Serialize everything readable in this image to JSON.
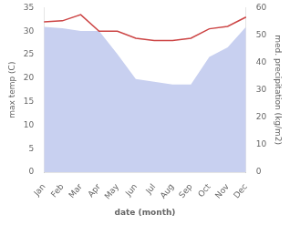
{
  "chart_data": {
    "type": "line",
    "categories": [
      "Jan",
      "Feb",
      "Mar",
      "Apr",
      "May",
      "Jun",
      "Jul",
      "Aug",
      "Sep",
      "Oct",
      "Nov",
      "Dec"
    ],
    "xlabel": "date (month)",
    "ylabel": "max temp (C)",
    "y2label": "med. precipitation (kg/m2)",
    "series": [
      {
        "type": "area",
        "axis": "y2",
        "color": "#c8d0f0",
        "values": [
          53.0,
          52.5,
          51.5,
          51.5,
          43.0,
          34.0,
          33.0,
          32.0,
          32.0,
          42.0,
          45.5,
          53.0
        ]
      },
      {
        "type": "line",
        "color": "#cc4444",
        "values": [
          32.0,
          32.2,
          33.5,
          30.0,
          30.0,
          28.5,
          28.0,
          28.0,
          28.5,
          30.5,
          31.0,
          33.0
        ]
      }
    ],
    "ylim": [
      0,
      35
    ],
    "yticks": [
      0,
      5,
      10,
      15,
      20,
      25,
      30,
      35
    ],
    "y2lim": [
      0,
      60
    ],
    "y2ticks": [
      0,
      10,
      20,
      30,
      40,
      50,
      60
    ],
    "grid": false
  }
}
